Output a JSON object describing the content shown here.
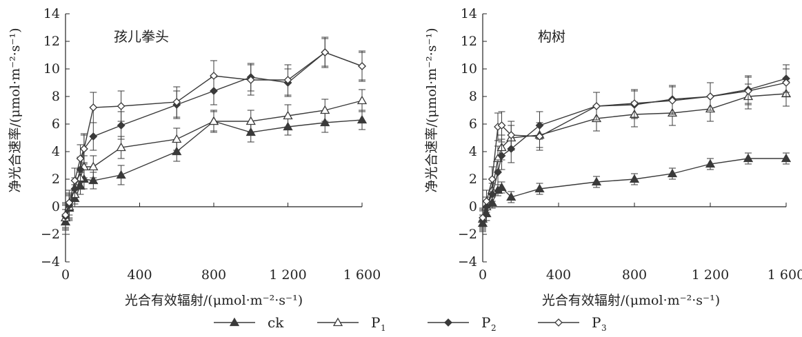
{
  "chart_data": [
    {
      "type": "line",
      "title": "孩儿拳头",
      "xlabel": "光合有效辐射/(μmol·m⁻²·s⁻¹)",
      "ylabel": "净光合速率/(μmol·m⁻²·s⁻¹)",
      "xlim": [
        0,
        1600
      ],
      "ylim": [
        -4,
        14
      ],
      "xticks": [
        "0",
        "400",
        "800",
        "1 200",
        "1 600"
      ],
      "yticks": [
        "−4",
        "−2",
        "0",
        "2",
        "4",
        "6",
        "8",
        "10",
        "12",
        "14"
      ],
      "grid": false,
      "series": [
        {
          "name": "ck",
          "marker": "triangle-filled",
          "x": [
            0,
            20,
            50,
            80,
            100,
            150,
            300,
            600,
            800,
            1000,
            1200,
            1400,
            1600
          ],
          "y": [
            -1.1,
            -0.1,
            0.6,
            1.5,
            2.0,
            1.9,
            2.3,
            4.0,
            6.2,
            5.4,
            5.8,
            6.1,
            6.3
          ],
          "err": [
            0.9,
            0.9,
            0.6,
            0.6,
            0.7,
            0.6,
            0.7,
            0.7,
            0.7,
            0.7,
            0.6,
            0.7,
            0.7
          ]
        },
        {
          "name": "P1",
          "marker": "triangle-open",
          "x": [
            0,
            20,
            50,
            80,
            100,
            150,
            300,
            600,
            800,
            1000,
            1200,
            1400,
            1600
          ],
          "y": [
            -0.8,
            0.0,
            0.9,
            2.1,
            2.9,
            2.9,
            4.3,
            4.9,
            6.2,
            6.2,
            6.6,
            7.0,
            7.7
          ],
          "err": [
            0.9,
            0.9,
            0.7,
            0.7,
            0.8,
            0.8,
            0.8,
            0.8,
            0.8,
            0.8,
            0.8,
            0.8,
            0.8
          ]
        },
        {
          "name": "P2",
          "marker": "diamond-filled",
          "x": [
            0,
            20,
            50,
            80,
            100,
            150,
            300,
            600,
            800,
            1000,
            1200,
            1400,
            1600
          ],
          "y": [
            -0.7,
            0.1,
            1.3,
            2.7,
            4.2,
            5.1,
            5.9,
            7.4,
            8.4,
            9.4,
            9.0,
            11.2,
            10.2
          ],
          "err": [
            0.9,
            0.9,
            0.8,
            0.9,
            1.0,
            1.0,
            1.0,
            1.0,
            1.0,
            1.0,
            1.0,
            1.0,
            1.0
          ]
        },
        {
          "name": "P3",
          "marker": "diamond-open",
          "x": [
            0,
            20,
            50,
            80,
            100,
            150,
            300,
            600,
            800,
            1000,
            1200,
            1400,
            1600
          ],
          "y": [
            -0.6,
            0.3,
            1.9,
            3.5,
            4.2,
            7.2,
            7.3,
            7.6,
            9.5,
            9.2,
            9.2,
            11.2,
            10.2
          ],
          "err": [
            0.9,
            0.9,
            0.9,
            1.0,
            1.1,
            1.1,
            1.1,
            1.1,
            1.1,
            1.1,
            1.1,
            1.1,
            1.1
          ]
        }
      ]
    },
    {
      "type": "line",
      "title": "构树",
      "xlabel": "光合有效辐射/(μmol·m⁻²·s⁻¹)",
      "ylabel": "净光合速率/(μmol·m⁻²·s⁻¹)",
      "xlim": [
        0,
        1600
      ],
      "ylim": [
        -4,
        14
      ],
      "xticks": [
        "0",
        "400",
        "800",
        "1 200",
        "1 600"
      ],
      "yticks": [
        "−4",
        "−2",
        "0",
        "2",
        "4",
        "6",
        "8",
        "10",
        "12",
        "14"
      ],
      "grid": false,
      "series": [
        {
          "name": "ck",
          "marker": "triangle-filled",
          "x": [
            0,
            20,
            50,
            80,
            100,
            150,
            300,
            600,
            800,
            1000,
            1200,
            1400,
            1600
          ],
          "y": [
            -1.2,
            -0.5,
            0.3,
            1.2,
            1.4,
            0.7,
            1.3,
            1.8,
            2.0,
            2.4,
            3.1,
            3.5,
            3.5
          ],
          "err": [
            0.6,
            0.5,
            0.4,
            0.4,
            0.4,
            0.4,
            0.4,
            0.4,
            0.4,
            0.4,
            0.4,
            0.4,
            0.4
          ]
        },
        {
          "name": "P1",
          "marker": "triangle-open",
          "x": [
            0,
            20,
            50,
            80,
            100,
            150,
            300,
            600,
            800,
            1000,
            1200,
            1400,
            1600
          ],
          "y": [
            -0.9,
            0.0,
            1.2,
            3.5,
            4.3,
            5.0,
            5.2,
            6.4,
            6.7,
            6.8,
            7.1,
            8.0,
            8.2
          ],
          "err": [
            0.7,
            0.7,
            0.8,
            0.9,
            0.9,
            0.9,
            0.9,
            0.9,
            0.9,
            0.9,
            0.9,
            0.9,
            0.9
          ]
        },
        {
          "name": "P2",
          "marker": "diamond-filled",
          "x": [
            0,
            20,
            50,
            80,
            100,
            150,
            300,
            600,
            800,
            1000,
            1200,
            1400,
            1600
          ],
          "y": [
            -1.0,
            0.0,
            0.9,
            2.5,
            3.7,
            4.2,
            5.9,
            7.3,
            7.4,
            7.8,
            8.0,
            8.5,
            9.3
          ],
          "err": [
            0.7,
            0.7,
            0.8,
            0.9,
            1.0,
            1.0,
            1.0,
            1.0,
            1.0,
            1.0,
            1.0,
            1.0,
            1.0
          ]
        },
        {
          "name": "P3",
          "marker": "diamond-open",
          "x": [
            0,
            20,
            50,
            80,
            100,
            150,
            300,
            600,
            800,
            1000,
            1200,
            1400,
            1600
          ],
          "y": [
            -0.8,
            0.4,
            2.0,
            5.8,
            5.9,
            5.2,
            5.1,
            7.3,
            7.5,
            7.7,
            8.0,
            8.4,
            9.0
          ],
          "err": [
            0.7,
            0.8,
            0.9,
            1.0,
            1.0,
            1.0,
            1.0,
            1.0,
            1.0,
            1.0,
            1.0,
            1.0,
            1.0
          ]
        }
      ]
    }
  ],
  "legend": [
    {
      "label": "ck",
      "sub": "",
      "marker": "triangle-filled"
    },
    {
      "label": "P",
      "sub": "1",
      "marker": "triangle-open"
    },
    {
      "label": "P",
      "sub": "2",
      "marker": "diamond-filled"
    },
    {
      "label": "P",
      "sub": "3",
      "marker": "diamond-open"
    }
  ],
  "colors": {
    "line": "#3a3a3a",
    "axis": "#222222",
    "background": "#ffffff"
  }
}
